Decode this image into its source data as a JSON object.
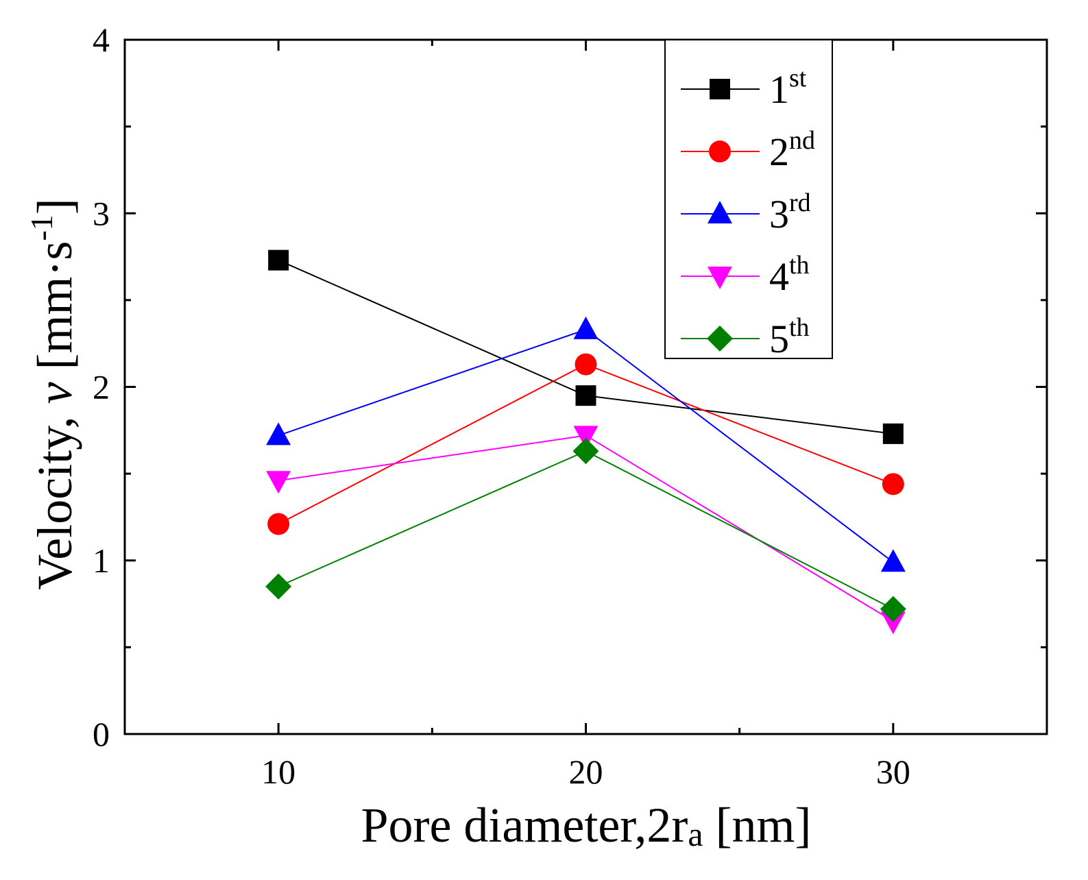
{
  "chart_data": {
    "type": "line",
    "title": "",
    "xlabel_main": "Pore diameter,2r",
    "xlabel_sub": "a",
    "xlabel_unit": " [nm]",
    "ylabel_main": "Velocity, ",
    "ylabel_var": "v",
    "ylabel_unit_pre": " [mm·s",
    "ylabel_unit_sup": "-1",
    "ylabel_unit_post": "]",
    "x": [
      10,
      20,
      30
    ],
    "xlim": [
      5,
      35
    ],
    "ylim": [
      0,
      4
    ],
    "x_ticks": [
      10,
      20,
      30
    ],
    "y_ticks": [
      0,
      1,
      2,
      3,
      4
    ],
    "y_minor_ticks": [
      0.5,
      1.5,
      2.5,
      3.5
    ],
    "x_minor_ticks": [
      15,
      25
    ],
    "legend_position": "top-right",
    "grid": false,
    "series": [
      {
        "name": "1",
        "sup": "st",
        "color": "#000000",
        "marker": "square",
        "values": [
          2.73,
          1.95,
          1.73
        ]
      },
      {
        "name": "2",
        "sup": "nd",
        "color": "#ff0000",
        "marker": "circle",
        "values": [
          1.21,
          2.13,
          1.44
        ]
      },
      {
        "name": "3",
        "sup": "rd",
        "color": "#0000ff",
        "marker": "triangle-up",
        "values": [
          1.72,
          2.33,
          0.99
        ]
      },
      {
        "name": "4",
        "sup": "th",
        "color": "#ff00ff",
        "marker": "triangle-down",
        "values": [
          1.46,
          1.72,
          0.65
        ]
      },
      {
        "name": "5",
        "sup": "th",
        "color": "#008000",
        "marker": "diamond",
        "values": [
          0.85,
          1.63,
          0.72
        ]
      }
    ]
  }
}
